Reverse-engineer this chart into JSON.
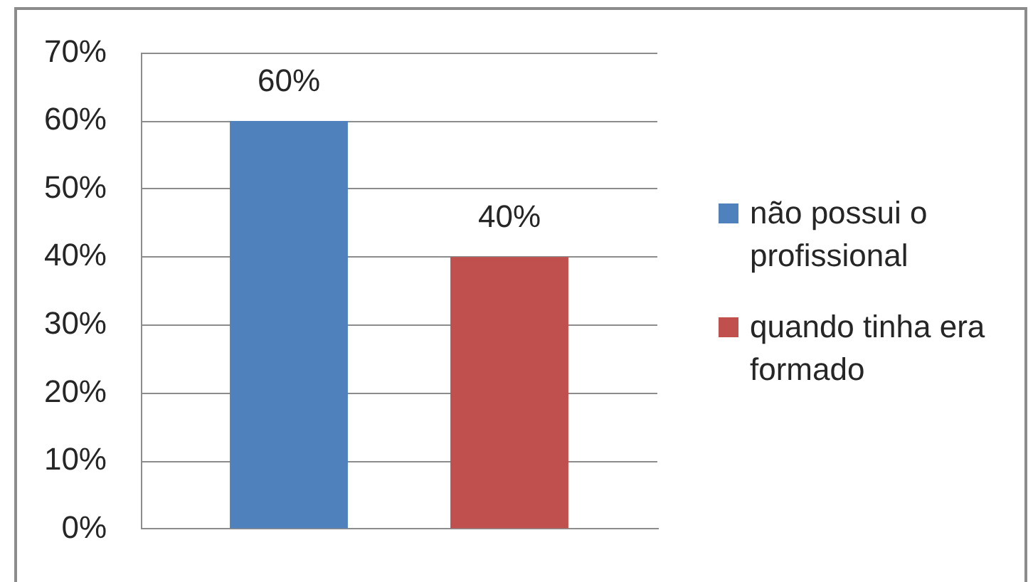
{
  "chart_data": {
    "type": "bar",
    "categories": [
      null
    ],
    "series": [
      {
        "name": "não possui o profissional",
        "color": "#4f81bd",
        "values": [
          60
        ],
        "value_labels": [
          "60%"
        ]
      },
      {
        "name": "quando tinha era formado",
        "color": "#c0504d",
        "values": [
          40
        ],
        "value_labels": [
          "40%"
        ]
      }
    ],
    "ylim": [
      0,
      70
    ],
    "yticks": [
      {
        "value": 0,
        "label": "0%"
      },
      {
        "value": 10,
        "label": "10%"
      },
      {
        "value": 20,
        "label": "20%"
      },
      {
        "value": 30,
        "label": "30%"
      },
      {
        "value": 40,
        "label": "40%"
      },
      {
        "value": 50,
        "label": "50%"
      },
      {
        "value": 60,
        "label": "60%"
      },
      {
        "value": 70,
        "label": "70%"
      }
    ],
    "grid": "y",
    "legend": "right"
  }
}
